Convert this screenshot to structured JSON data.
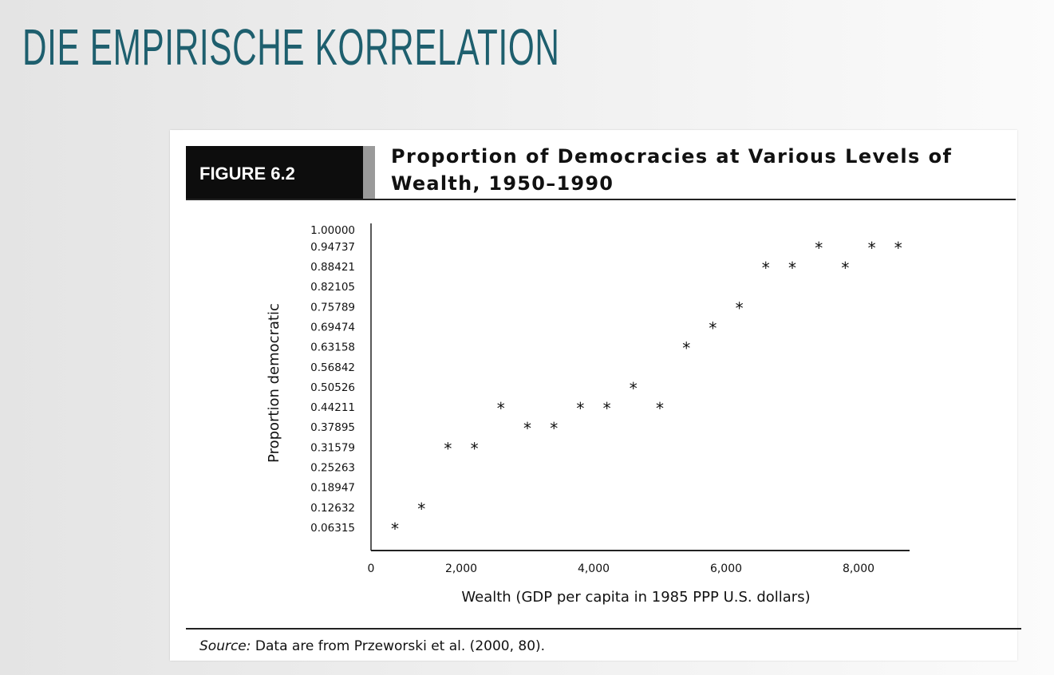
{
  "slide": {
    "title": "DIE EMPIRISCHE KORRELATION",
    "title_color": "#1e5f6e"
  },
  "figure": {
    "label": "FIGURE 6.2",
    "title_line1": "Proportion of Democracies at Various Levels of",
    "title_line2": "Wealth, 1950–1990",
    "source_prefix": "Source:",
    "source_text": " Data are from Przeworski et al. (2000, 80)."
  },
  "chart_data": {
    "type": "scatter",
    "title": "Proportion of Democracies at Various Levels of Wealth, 1950–1990",
    "xlabel": "Wealth (GDP per capita in 1985 PPP U.S. dollars)",
    "ylabel": "Proportion democratic",
    "marker": "*",
    "xlim": [
      0,
      8700
    ],
    "ylim": [
      0,
      1.0
    ],
    "x_ticks": [
      "0",
      "2,000",
      "4,000",
      "6,000",
      "8,000"
    ],
    "x_tick_values": [
      0,
      2000,
      4000,
      6000,
      8000
    ],
    "y_ticks": [
      "1.00000",
      "0.94737",
      "0.88421",
      "0.82105",
      "0.75789",
      "0.69474",
      "0.63158",
      "0.56842",
      "0.50526",
      "0.44211",
      "0.37895",
      "0.31579",
      "0.25263",
      "0.18947",
      "0.12632",
      "0.06315"
    ],
    "x": [
      1000,
      1400,
      1800,
      2200,
      2600,
      3000,
      3400,
      3800,
      4200,
      4600,
      5000,
      5400,
      5800,
      6200,
      6600,
      7000,
      7400,
      7800,
      8200,
      8600
    ],
    "y": [
      0.06315,
      0.12632,
      0.31579,
      0.31579,
      0.44211,
      0.37895,
      0.37895,
      0.44211,
      0.44211,
      0.50526,
      0.44211,
      0.63158,
      0.69474,
      0.75789,
      0.88421,
      0.88421,
      0.94737,
      0.88421,
      0.94737,
      0.94737
    ],
    "grid": false
  }
}
